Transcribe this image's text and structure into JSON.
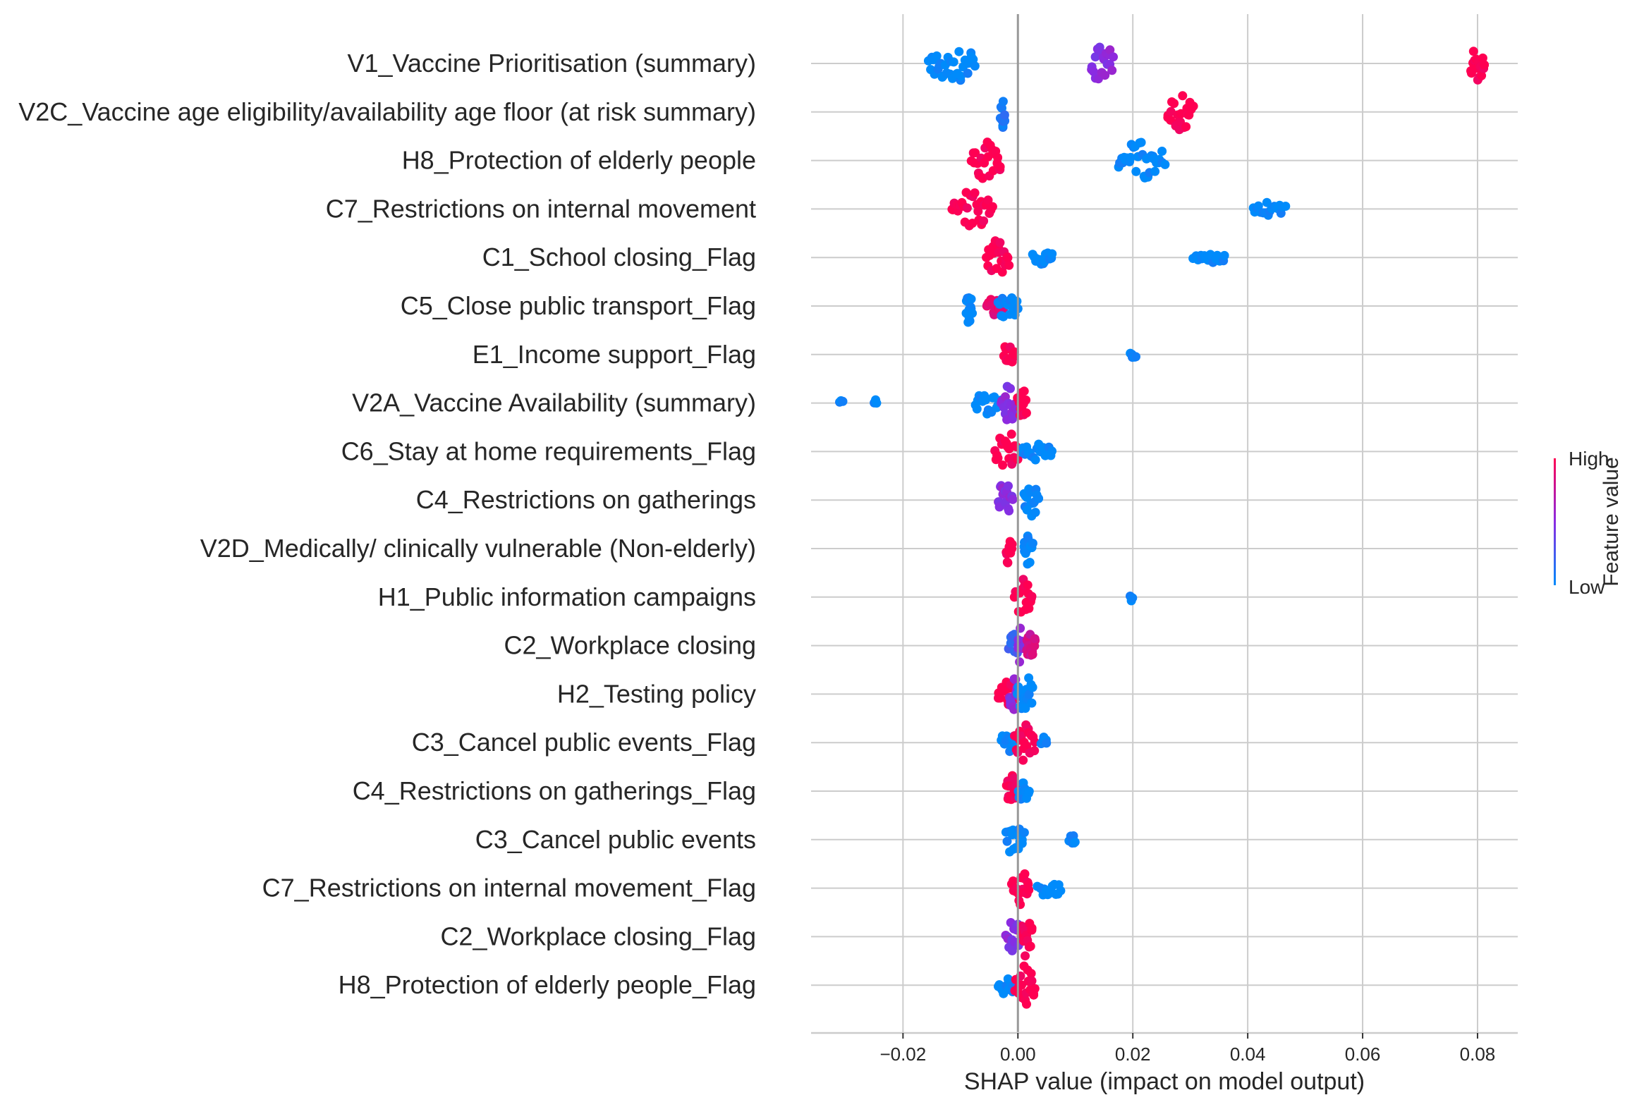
{
  "chart_data": {
    "type": "scatter",
    "subtype": "shap-beeswarm-summary",
    "xlabel": "SHAP value (impact on model output)",
    "xlim": [
      -0.036,
      0.087
    ],
    "x_ticks": [
      -0.02,
      0.0,
      0.02,
      0.04,
      0.06,
      0.08
    ],
    "x_tick_labels": [
      "−0.02",
      "0.00",
      "0.02",
      "0.04",
      "0.06",
      "0.08"
    ],
    "grid": true,
    "colorbar": {
      "title": "Feature value",
      "high_label": "High",
      "low_label": "Low",
      "high_color": "#ff0052",
      "low_color": "#008bfb",
      "mid_color": "#8a2be2"
    },
    "features": [
      {
        "name": "V1_Vaccine Prioritisation (summary)",
        "clusters": [
          {
            "x": [
              -0.0155,
              -0.0075
            ],
            "v": 0.0,
            "w": 1.0
          },
          {
            "x": [
              0.0128,
              0.0165
            ],
            "v": 0.5,
            "w": 1.0
          },
          {
            "x": [
              0.0788,
              0.0812
            ],
            "v": 1.0,
            "w": 1.0
          }
        ]
      },
      {
        "name": "V2C_Vaccine age eligibility/availability age floor (at risk summary)",
        "clusters": [
          {
            "x": [
              -0.003,
              -0.0022
            ],
            "v": 0.1,
            "w": 0.9
          },
          {
            "x": [
              0.026,
              0.0305
            ],
            "v": 1.0,
            "w": 0.9
          }
        ]
      },
      {
        "name": "H8_Protection of elderly people",
        "clusters": [
          {
            "x": [
              -0.008,
              -0.003
            ],
            "v": 1.0,
            "w": 1.0
          },
          {
            "x": [
              0.0175,
              0.0255
            ],
            "v": 0.0,
            "w": 1.0
          }
        ]
      },
      {
        "name": "C7_Restrictions on internal movement",
        "clusters": [
          {
            "x": [
              -0.0115,
              -0.0045
            ],
            "v": 1.0,
            "w": 1.0
          },
          {
            "x": [
              0.041,
              0.0465
            ],
            "v": 0.0,
            "w": 0.3
          }
        ]
      },
      {
        "name": "C1_School closing_Flag",
        "clusters": [
          {
            "x": [
              -0.0055,
              -0.0015
            ],
            "v": 1.0,
            "w": 1.0
          },
          {
            "x": [
              0.0025,
              0.006
            ],
            "v": 0.0,
            "w": 0.4
          },
          {
            "x": [
              0.0305,
              0.036
            ],
            "v": 0.0,
            "w": 0.3
          }
        ]
      },
      {
        "name": "C5_Close public transport_Flag",
        "clusters": [
          {
            "x": [
              -0.009,
              -0.008
            ],
            "v": 0.0,
            "w": 1.0
          },
          {
            "x": [
              -0.0055,
              -0.0025
            ],
            "v": 0.9,
            "w": 0.6
          },
          {
            "x": [
              -0.0035,
              0.0
            ],
            "v": 0.0,
            "w": 0.7
          }
        ]
      },
      {
        "name": "E1_Income support_Flag",
        "clusters": [
          {
            "x": [
              -0.0025,
              -0.0005
            ],
            "v": 1.0,
            "w": 0.9
          },
          {
            "x": [
              0.0195,
              0.0205
            ],
            "v": 0.0,
            "w": 0.2
          }
        ]
      },
      {
        "name": "V2A_Vaccine Availability (summary)",
        "clusters": [
          {
            "x": [
              -0.031,
              -0.0305
            ],
            "v": 0.0,
            "w": 0.1
          },
          {
            "x": [
              -0.025,
              -0.0245
            ],
            "v": 0.0,
            "w": 0.15
          },
          {
            "x": [
              -0.0075,
              -0.003
            ],
            "v": 0.0,
            "w": 0.6
          },
          {
            "x": [
              -0.003,
              0.0
            ],
            "v": 0.5,
            "w": 1.0
          },
          {
            "x": [
              0.0,
              0.0015
            ],
            "v": 1.0,
            "w": 1.0
          }
        ]
      },
      {
        "name": "C6_Stay at home requirements_Flag",
        "clusters": [
          {
            "x": [
              -0.004,
              0.0
            ],
            "v": 1.0,
            "w": 1.0
          },
          {
            "x": [
              0.0005,
              0.006
            ],
            "v": 0.0,
            "w": 0.4
          }
        ]
      },
      {
        "name": "C4_Restrictions on gatherings",
        "clusters": [
          {
            "x": [
              -0.0035,
              -0.001
            ],
            "v": 0.5,
            "w": 1.0
          },
          {
            "x": [
              0.001,
              0.0035
            ],
            "v": 0.0,
            "w": 0.9
          }
        ]
      },
      {
        "name": "V2D_Medically/ clinically vulnerable (Non-elderly)",
        "clusters": [
          {
            "x": [
              -0.002,
              -0.001
            ],
            "v": 1.0,
            "w": 0.9
          },
          {
            "x": [
              0.001,
              0.0025
            ],
            "v": 0.0,
            "w": 0.9
          }
        ]
      },
      {
        "name": "H1_Public information campaigns",
        "clusters": [
          {
            "x": [
              -0.0005,
              0.0025
            ],
            "v": 1.0,
            "w": 1.0
          },
          {
            "x": [
              0.0195,
              0.02
            ],
            "v": 0.0,
            "w": 0.15
          }
        ]
      },
      {
        "name": "C2_Workplace closing",
        "clusters": [
          {
            "x": [
              -0.0015,
              0.0005
            ],
            "v": 0.2,
            "w": 0.6
          },
          {
            "x": [
              0.0,
              0.001
            ],
            "v": 0.5,
            "w": 1.0
          },
          {
            "x": [
              0.0015,
              0.003
            ],
            "v": 0.8,
            "w": 1.0
          }
        ]
      },
      {
        "name": "H2_Testing policy",
        "clusters": [
          {
            "x": [
              -0.0035,
              -0.0005
            ],
            "v": 1.0,
            "w": 0.6
          },
          {
            "x": [
              -0.0015,
              0.0
            ],
            "v": 0.5,
            "w": 1.0
          },
          {
            "x": [
              0.0,
              0.0025
            ],
            "v": 0.0,
            "w": 1.0
          }
        ]
      },
      {
        "name": "C3_Cancel public events_Flag",
        "clusters": [
          {
            "x": [
              -0.003,
              -0.0005
            ],
            "v": 0.0,
            "w": 0.6
          },
          {
            "x": [
              -0.0005,
              0.003
            ],
            "v": 1.0,
            "w": 1.0
          },
          {
            "x": [
              0.004,
              0.005
            ],
            "v": 0.0,
            "w": 0.3
          }
        ]
      },
      {
        "name": "C4_Restrictions on gatherings_Flag",
        "clusters": [
          {
            "x": [
              -0.002,
              -0.0003
            ],
            "v": 1.0,
            "w": 1.0
          },
          {
            "x": [
              0.0,
              0.002
            ],
            "v": 0.0,
            "w": 0.6
          }
        ]
      },
      {
        "name": "C3_Cancel public events",
        "clusters": [
          {
            "x": [
              -0.002,
              0.001
            ],
            "v": 0.0,
            "w": 1.0
          },
          {
            "x": [
              0.009,
              0.01
            ],
            "v": 0.0,
            "w": 0.25
          }
        ]
      },
      {
        "name": "C7_Restrictions on internal movement_Flag",
        "clusters": [
          {
            "x": [
              -0.001,
              0.002
            ],
            "v": 1.0,
            "w": 1.0
          },
          {
            "x": [
              0.0035,
              0.0075
            ],
            "v": 0.0,
            "w": 0.4
          }
        ]
      },
      {
        "name": "C2_Workplace closing_Flag",
        "clusters": [
          {
            "x": [
              -0.002,
              0.0005
            ],
            "v": 0.5,
            "w": 0.8
          },
          {
            "x": [
              0.0005,
              0.0025
            ],
            "v": 1.0,
            "w": 1.0
          }
        ]
      },
      {
        "name": "H8_Protection of elderly people_Flag",
        "clusters": [
          {
            "x": [
              -0.0035,
              -0.0005
            ],
            "v": 0.0,
            "w": 0.5
          },
          {
            "x": [
              -0.0005,
              0.003
            ],
            "v": 1.0,
            "w": 1.0
          }
        ]
      }
    ]
  }
}
